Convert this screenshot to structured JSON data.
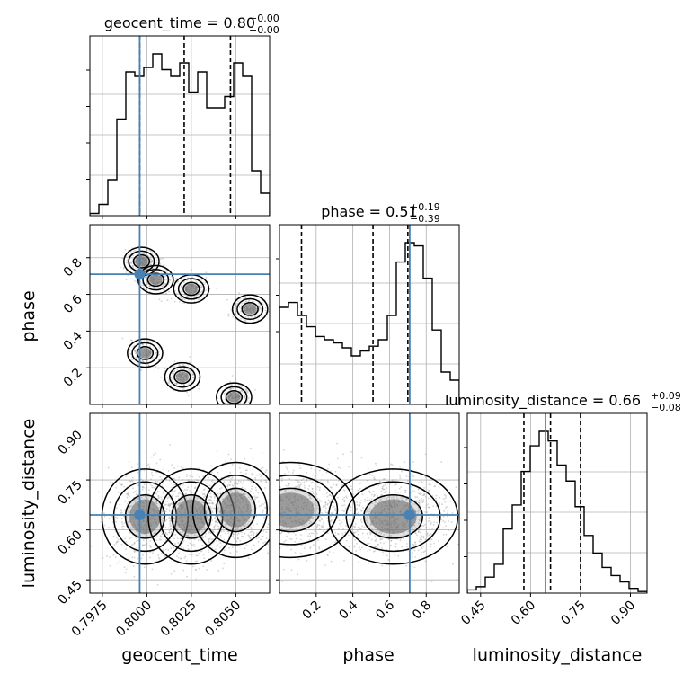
{
  "chart_data": {
    "type": "corner",
    "parameters": [
      "geocent_time",
      "phase",
      "luminosity_distance"
    ],
    "axis_labels": [
      "geocent_time",
      "phase",
      "luminosity_distance"
    ],
    "titles": {
      "geocent_time": {
        "name": "geocent_time",
        "median": "0.80",
        "plus": "+0.00",
        "minus": "−0.00"
      },
      "phase": {
        "name": "phase",
        "median": "0.51",
        "plus": "+0.19",
        "minus": "−0.39"
      },
      "luminosity_distance": {
        "name": "luminosity_distance",
        "median": "0.66",
        "plus": "+0.09",
        "minus": "−0.08"
      }
    },
    "ranges": {
      "geocent_time": [
        0.7968,
        0.8069
      ],
      "phase": [
        0.0,
        0.98
      ],
      "luminosity_distance": [
        0.41,
        0.95
      ]
    },
    "ticks": {
      "geocent_time": [
        0.7975,
        0.8,
        0.8025,
        0.805
      ],
      "phase": [
        0.2,
        0.4,
        0.6,
        0.8
      ],
      "luminosity_distance": [
        0.45,
        0.6,
        0.75,
        0.9
      ]
    },
    "tick_labels": {
      "geocent_time": [
        "0.7975",
        "0.8000",
        "0.8025",
        "0.8050"
      ],
      "phase": [
        "0.2",
        "0.4",
        "0.6",
        "0.8"
      ],
      "luminosity_distance": [
        "0.45",
        "0.60",
        "0.75",
        "0.90"
      ]
    },
    "truths": {
      "geocent_time": 0.7996,
      "phase": 0.71,
      "luminosity_distance": 0.645
    },
    "quantiles": {
      "geocent_time": [
        0.7996,
        0.8021,
        0.8047
      ],
      "phase": [
        0.12,
        0.51,
        0.7
      ],
      "luminosity_distance": [
        0.58,
        0.66,
        0.75
      ]
    },
    "histograms": {
      "geocent_time": [
        1,
        5,
        16,
        43,
        64,
        62,
        66,
        72,
        65,
        62,
        68,
        55,
        64,
        48,
        48,
        53,
        68,
        62,
        20,
        10
      ],
      "phase": [
        60,
        63,
        55,
        48,
        42,
        40,
        38,
        35,
        30,
        33,
        36,
        40,
        55,
        88,
        100,
        98,
        78,
        46,
        20,
        15
      ],
      "luminosity_distance": [
        2,
        4,
        10,
        18,
        40,
        55,
        76,
        92,
        101,
        95,
        80,
        70,
        54,
        36,
        25,
        16,
        11,
        7,
        3,
        1
      ]
    },
    "density_modes": {
      "phase_vs_geocent_time": [
        {
          "x": 0.7997,
          "y": 0.78,
          "w": 1.0
        },
        {
          "x": 0.8005,
          "y": 0.68,
          "w": 0.9
        },
        {
          "x": 0.8025,
          "y": 0.63,
          "w": 0.8
        },
        {
          "x": 0.8058,
          "y": 0.52,
          "w": 0.7
        },
        {
          "x": 0.7999,
          "y": 0.28,
          "w": 0.55
        },
        {
          "x": 0.802,
          "y": 0.15,
          "w": 0.6
        },
        {
          "x": 0.8049,
          "y": 0.04,
          "w": 0.75
        }
      ],
      "luminosity_distance_vs_geocent_time": [
        {
          "x": 0.7999,
          "y": 0.64,
          "w": 1.0
        },
        {
          "x": 0.8025,
          "y": 0.64,
          "w": 0.95
        },
        {
          "x": 0.805,
          "y": 0.66,
          "w": 1.0
        }
      ],
      "luminosity_distance_vs_phase": [
        {
          "x": 0.06,
          "y": 0.66,
          "w": 0.9
        },
        {
          "x": 0.62,
          "y": 0.64,
          "w": 1.0
        }
      ]
    },
    "grid": true,
    "truth_color": "#4682b4",
    "line_color": "#000000",
    "sample_color": "#a0a0a0"
  }
}
